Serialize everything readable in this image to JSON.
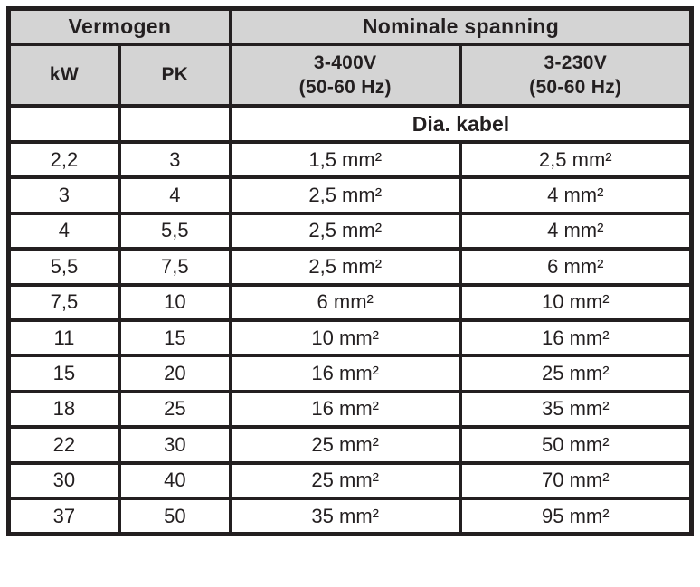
{
  "table": {
    "header": {
      "group_left": "Vermogen",
      "group_right": "Nominale spanning",
      "col_kw": "kW",
      "col_pk": "PK",
      "col_v400": "3-400V\n(50-60 Hz)",
      "col_v230": "3-230V\n(50-60 Hz)",
      "dia_label": "Dia. kabel"
    },
    "rows": [
      {
        "kw": "2,2",
        "pk": "3",
        "d400": "1,5 mm²",
        "d230": "2,5 mm²"
      },
      {
        "kw": "3",
        "pk": "4",
        "d400": "2,5 mm²",
        "d230": "4 mm²"
      },
      {
        "kw": "4",
        "pk": "5,5",
        "d400": "2,5 mm²",
        "d230": "4 mm²"
      },
      {
        "kw": "5,5",
        "pk": "7,5",
        "d400": "2,5 mm²",
        "d230": "6 mm²"
      },
      {
        "kw": "7,5",
        "pk": "10",
        "d400": "6 mm²",
        "d230": "10 mm²"
      },
      {
        "kw": "11",
        "pk": "15",
        "d400": "10 mm²",
        "d230": "16 mm²"
      },
      {
        "kw": "15",
        "pk": "20",
        "d400": "16 mm²",
        "d230": "25 mm²"
      },
      {
        "kw": "18",
        "pk": "25",
        "d400": "16 mm²",
        "d230": "35 mm²"
      },
      {
        "kw": "22",
        "pk": "30",
        "d400": "25 mm²",
        "d230": "50 mm²"
      },
      {
        "kw": "30",
        "pk": "40",
        "d400": "25 mm²",
        "d230": "70 mm²"
      },
      {
        "kw": "37",
        "pk": "50",
        "d400": "35 mm²",
        "d230": "95 mm²"
      }
    ]
  },
  "colors": {
    "header_bg": "#d4d4d4",
    "border": "#231f20",
    "text": "#231f20",
    "page_bg": "#ffffff"
  }
}
